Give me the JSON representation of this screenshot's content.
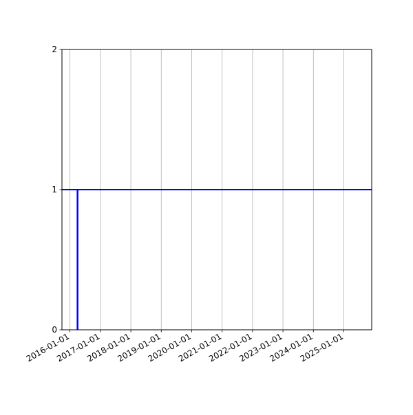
{
  "chart_data": {
    "type": "line",
    "title": "",
    "xlabel": "",
    "ylabel": "",
    "x_axis_type": "date",
    "xlim": [
      "2015-09-27",
      "2025-12-01"
    ],
    "ylim": [
      0,
      2
    ],
    "x_ticks": [
      "2016-01-01",
      "2017-01-01",
      "2018-01-01",
      "2019-01-01",
      "2020-01-01",
      "2021-01-01",
      "2022-01-01",
      "2023-01-01",
      "2024-01-01",
      "2025-01-01"
    ],
    "y_ticks": [
      0,
      1,
      2
    ],
    "grid": "x-major",
    "color": "#0000ff",
    "series": [
      {
        "kind": "horizontal-line",
        "y": 1
      },
      {
        "kind": "vertical-line",
        "x": "2016-04-01",
        "y": [
          0,
          1
        ]
      }
    ]
  }
}
